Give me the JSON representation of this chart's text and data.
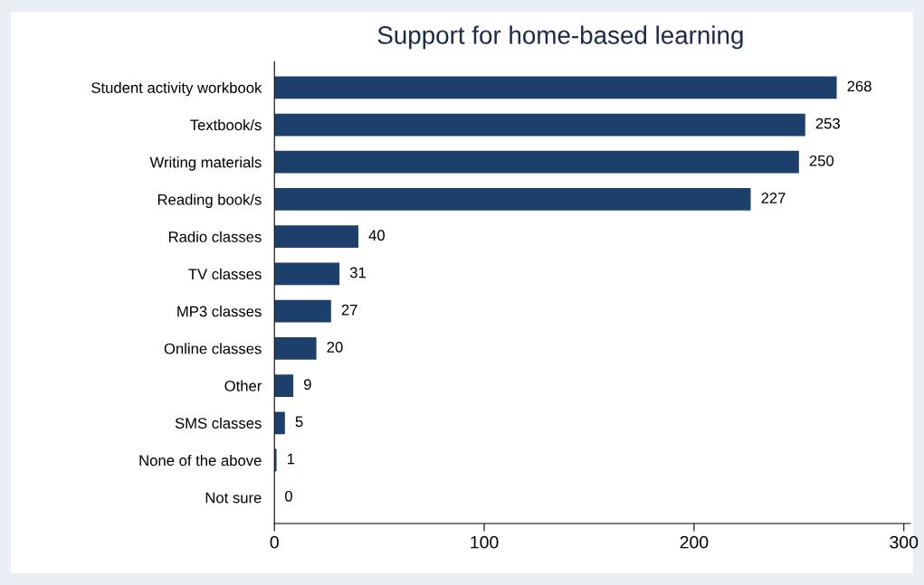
{
  "chart_data": {
    "type": "bar",
    "orientation": "horizontal",
    "title": "Support for home-based learning",
    "categories": [
      "Student activity workbook",
      "Textbook/s",
      "Writing materials",
      "Reading book/s",
      "Radio classes",
      "TV classes",
      "MP3 classes",
      "Online classes",
      "Other",
      "SMS classes",
      "None of the above",
      "Not sure"
    ],
    "values": [
      268,
      253,
      250,
      227,
      40,
      31,
      27,
      20,
      9,
      5,
      1,
      0
    ],
    "color": "#1c3f6b",
    "data_labels": true,
    "grid": false,
    "xlim": [
      0,
      303
    ],
    "xticks": [
      0,
      100,
      200,
      300
    ]
  }
}
